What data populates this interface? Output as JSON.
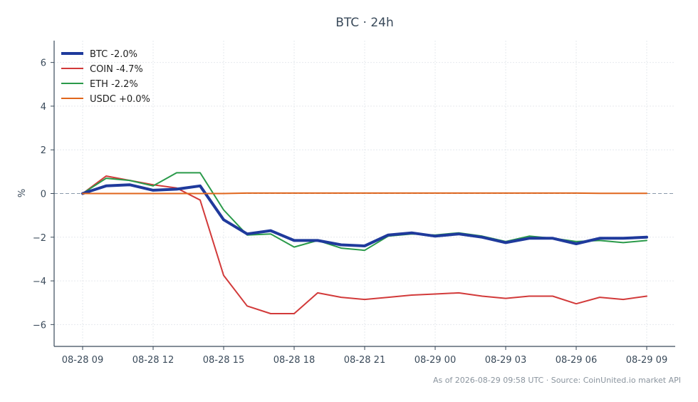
{
  "chart_data": {
    "type": "line",
    "title": "BTC · 24h",
    "xlabel": "",
    "ylabel": "%",
    "ylim": [
      -7,
      7
    ],
    "yticks": [
      6,
      4,
      2,
      0,
      -2,
      -4,
      -6
    ],
    "ytick_labels": [
      "6",
      "4",
      "2",
      "0",
      "−2",
      "−4",
      "−6"
    ],
    "xticks": [
      "08-28 09",
      "08-28 12",
      "08-28 15",
      "08-28 18",
      "08-28 21",
      "08-29 00",
      "08-29 03",
      "08-29 06",
      "08-29 09"
    ],
    "x": [
      "08-28 09",
      "08-28 10",
      "08-28 11",
      "08-28 12",
      "08-28 13",
      "08-28 14",
      "08-28 15",
      "08-28 16",
      "08-28 17",
      "08-28 18",
      "08-28 19",
      "08-28 20",
      "08-28 21",
      "08-28 22",
      "08-28 23",
      "08-29 00",
      "08-29 01",
      "08-29 02",
      "08-29 03",
      "08-29 04",
      "08-29 05",
      "08-29 06",
      "08-29 07",
      "08-29 08",
      "08-29 09"
    ],
    "grid": true,
    "zero_line": true,
    "legend_position": "top-left",
    "series": [
      {
        "name": "BTC -2.0%",
        "color": "#1f3a9c",
        "width": "thick",
        "values": [
          0.0,
          0.35,
          0.4,
          0.15,
          0.2,
          0.35,
          -1.2,
          -1.85,
          -1.7,
          -2.15,
          -2.15,
          -2.35,
          -2.4,
          -1.9,
          -1.8,
          -1.95,
          -1.85,
          -2.0,
          -2.25,
          -2.05,
          -2.05,
          -2.3,
          -2.05,
          -2.05,
          -2.0
        ]
      },
      {
        "name": "COIN -4.7%",
        "color": "#d23a3a",
        "width": "normal",
        "values": [
          0.0,
          0.8,
          0.6,
          0.4,
          0.25,
          -0.3,
          -3.75,
          -5.15,
          -5.5,
          -5.5,
          -4.55,
          -4.75,
          -4.85,
          -4.75,
          -4.65,
          -4.6,
          -4.55,
          -4.7,
          -4.8,
          -4.7,
          -4.7,
          -5.05,
          -4.75,
          -4.85,
          -4.7
        ]
      },
      {
        "name": "ETH -2.2%",
        "color": "#2a9a4a",
        "width": "normal",
        "values": [
          0.0,
          0.7,
          0.6,
          0.35,
          0.95,
          0.95,
          -0.75,
          -1.9,
          -1.85,
          -2.45,
          -2.15,
          -2.5,
          -2.6,
          -1.95,
          -1.85,
          -1.9,
          -1.8,
          -1.95,
          -2.2,
          -1.95,
          -2.05,
          -2.2,
          -2.15,
          -2.25,
          -2.15
        ]
      },
      {
        "name": "USDC +0.0%",
        "color": "#e0661c",
        "width": "normal",
        "values": [
          0.0,
          0.0,
          0.0,
          0.0,
          0.0,
          0.0,
          0.0,
          0.02,
          0.02,
          0.02,
          0.02,
          0.02,
          0.02,
          0.02,
          0.02,
          0.02,
          0.02,
          0.02,
          0.02,
          0.02,
          0.02,
          0.02,
          0.01,
          0.01,
          0.01
        ]
      }
    ],
    "footer": "As of 2026-08-29 09:58 UTC · Source: CoinUnited.io market API"
  }
}
